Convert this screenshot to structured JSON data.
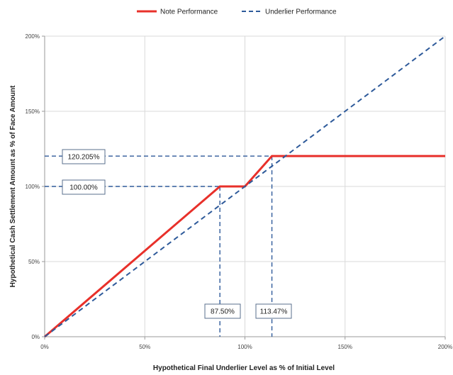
{
  "chart_data": {
    "type": "line",
    "title": "",
    "xlabel": "Hypothetical Final Underlier Level as % of Initial  Level",
    "ylabel": "Hypothetical Cash Settlement Amount as % of Face Amount",
    "xlim": [
      0,
      200
    ],
    "ylim": [
      0,
      200
    ],
    "xticks": [
      0,
      50,
      100,
      150,
      200
    ],
    "yticks": [
      0,
      50,
      100,
      150,
      200
    ],
    "xtick_labels": [
      "0%",
      "50%",
      "100%",
      "150%",
      "200%"
    ],
    "ytick_labels": [
      "0%",
      "50%",
      "100%",
      "150%",
      "200%"
    ],
    "grid": true,
    "legend_position": "top",
    "series": [
      {
        "name": "Note Performance",
        "color": "#e8302a",
        "style": "solid",
        "x": [
          0,
          87.5,
          100,
          113.47,
          200
        ],
        "y": [
          0,
          100,
          100,
          120.205,
          120.205
        ]
      },
      {
        "name": "Underlier Performance",
        "color": "#2e5a9a",
        "style": "dashed",
        "x": [
          0,
          200
        ],
        "y": [
          0,
          200
        ]
      }
    ],
    "annotations": [
      {
        "label": "120.205%",
        "axis": "y",
        "value": 120.205,
        "guide_to_x": 113.47
      },
      {
        "label": "100.00%",
        "axis": "y",
        "value": 100,
        "guide_to_x": 87.5
      },
      {
        "label": "87.50%",
        "axis": "x",
        "value": 87.5,
        "guide_to_y": 100
      },
      {
        "label": "113.47%",
        "axis": "x",
        "value": 113.47,
        "guide_to_y": 120.205
      }
    ]
  }
}
